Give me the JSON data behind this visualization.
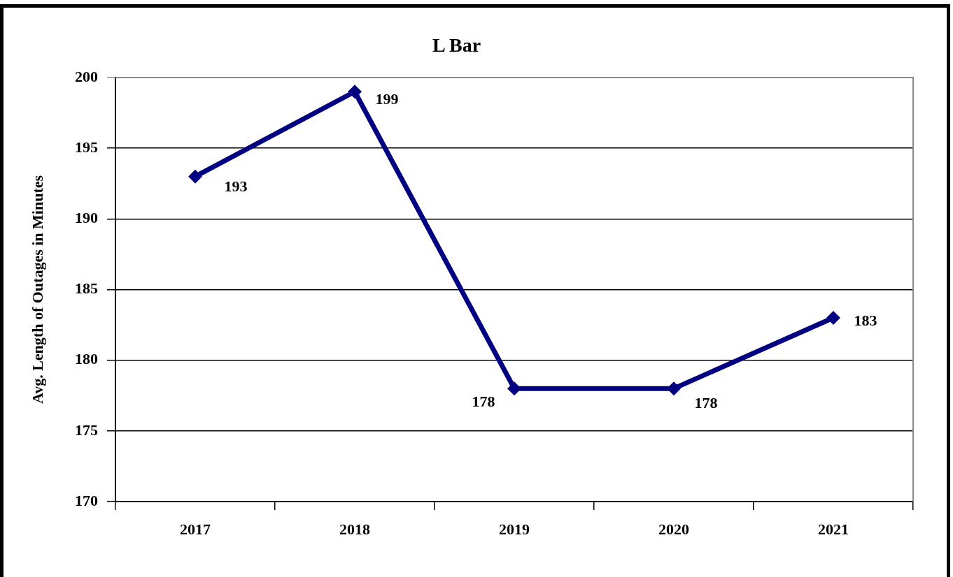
{
  "chart_data": {
    "type": "line",
    "title": "L Bar",
    "ylabel": "Avg. Length of Outages in Minutes",
    "categories": [
      "2017",
      "2018",
      "2019",
      "2020",
      "2021"
    ],
    "series": [
      {
        "color": "#000080",
        "values": [
          193,
          199,
          178,
          178,
          183
        ]
      }
    ],
    "ylim": [
      170,
      200
    ],
    "yticks": [
      170,
      175,
      180,
      185,
      190,
      195,
      200
    ],
    "grid": "y",
    "legend": false,
    "marker": "diamond",
    "line_style": "solid",
    "data_labels": true
  }
}
